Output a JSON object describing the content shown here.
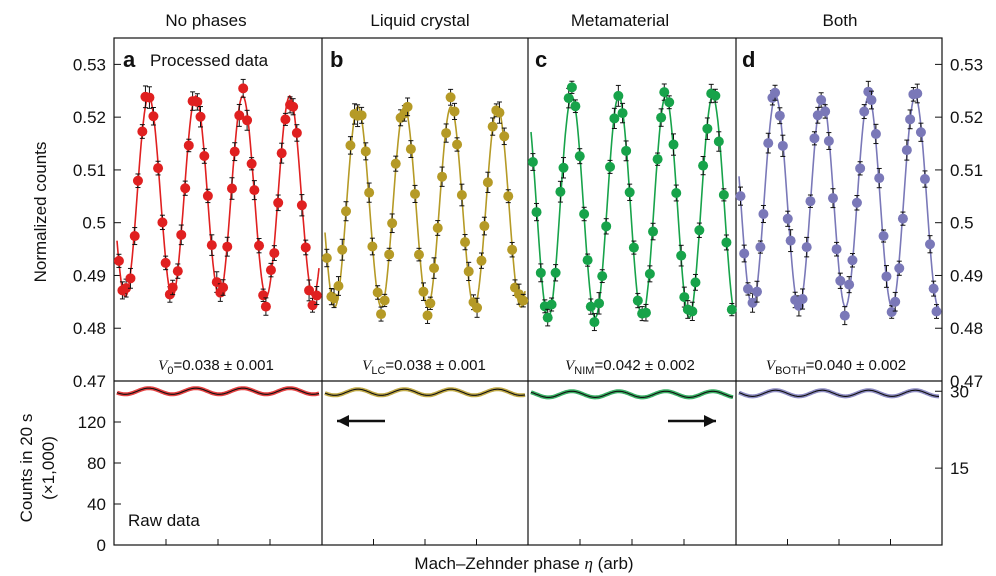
{
  "column_titles": [
    "No phases",
    "Liquid crystal",
    "Metamaterial",
    "Both"
  ],
  "panel_letters": [
    "a",
    "b",
    "c",
    "d"
  ],
  "processed_label": "Processed data",
  "raw_label": "Raw data",
  "visibility": [
    {
      "sym": "V",
      "sub": "0",
      "rest": "=0.038 ± 0.001"
    },
    {
      "sym": "V",
      "sub": "LC",
      "rest": "=0.038 ± 0.001"
    },
    {
      "sym": "V",
      "sub": "NIM",
      "rest": "=0.042 ± 0.002"
    },
    {
      "sym": "V",
      "sub": "BOTH",
      "rest": "=0.040 ± 0.002"
    }
  ],
  "ylabel_top": "Normalized counts",
  "ylabel_bottom_1": "Counts in 20 s",
  "ylabel_bottom_2": "(×1,000)",
  "xlabel_text": "Mach–Zehnder phase ",
  "xlabel_symbol": "η",
  "xlabel_unit": " (arb)",
  "colors": {
    "no_phases": "#e02020",
    "liquid_crystal": "#b59a26",
    "metamaterial": "#17a34a",
    "both": "#7a78b8",
    "axis": "#111111",
    "fit_raw": "#111111"
  },
  "chart_data": [
    {
      "type": "scatter",
      "title": "No phases",
      "panel": "a",
      "series_color": "#e02020",
      "xlabel": "Mach–Zehnder phase η (arb)",
      "ylabel": "Normalized counts",
      "ylim": [
        0.47,
        0.535
      ],
      "yticks": [
        0.47,
        0.48,
        0.49,
        0.5,
        0.51,
        0.52,
        0.53
      ],
      "ytick_labels": [
        "0.47",
        "0.48",
        "0.49",
        "0.5",
        "0.51",
        "0.52",
        "0.53"
      ],
      "fit": {
        "mean": 0.505,
        "amplitude": 0.019,
        "cycles": 4.3,
        "phase": 3.6
      },
      "raw": {
        "ylim": [
          0,
          160
        ],
        "yticks": [
          0,
          40,
          80,
          120
        ],
        "mean": 150,
        "amplitude": 3
      },
      "visibility": "V0=0.038 ± 0.001"
    },
    {
      "type": "scatter",
      "title": "Liquid crystal",
      "panel": "b",
      "series_color": "#b59a26",
      "ylim": [
        0.47,
        0.535
      ],
      "fit": {
        "mean": 0.503,
        "amplitude": 0.019,
        "cycles": 4.3,
        "phase": 3.4
      },
      "raw": {
        "ylim": [
          0,
          160
        ],
        "mean": 149,
        "amplitude": 3
      },
      "annotation": "arrow pointing left (phase shift)",
      "visibility": "VLC=0.038 ± 0.001"
    },
    {
      "type": "scatter",
      "title": "Metamaterial",
      "panel": "c",
      "series_color": "#17a34a",
      "ylim": [
        0.47,
        0.535
      ],
      "fit": {
        "mean": 0.503,
        "amplitude": 0.021,
        "cycles": 4.3,
        "phase": 2.4
      },
      "raw": {
        "ylim": [
          0,
          160
        ],
        "mean": 147,
        "amplitude": 3
      },
      "annotation": "arrow pointing right (phase shift)",
      "visibility": "VNIM=0.042 ± 0.002"
    },
    {
      "type": "scatter",
      "title": "Both",
      "panel": "d",
      "series_color": "#7a78b8",
      "ylim": [
        0.47,
        0.535
      ],
      "yticks_right": [
        0.47,
        0.48,
        0.49,
        0.5,
        0.51,
        0.52,
        0.53
      ],
      "fit": {
        "mean": 0.504,
        "amplitude": 0.02,
        "cycles": 4.3,
        "phase": 2.9
      },
      "raw": {
        "ylim_right": [
          0,
          32
        ],
        "yticks_right": [
          15,
          30
        ],
        "mean": 148,
        "amplitude": 3
      },
      "visibility": "VBOTH=0.040 ± 0.002"
    }
  ]
}
